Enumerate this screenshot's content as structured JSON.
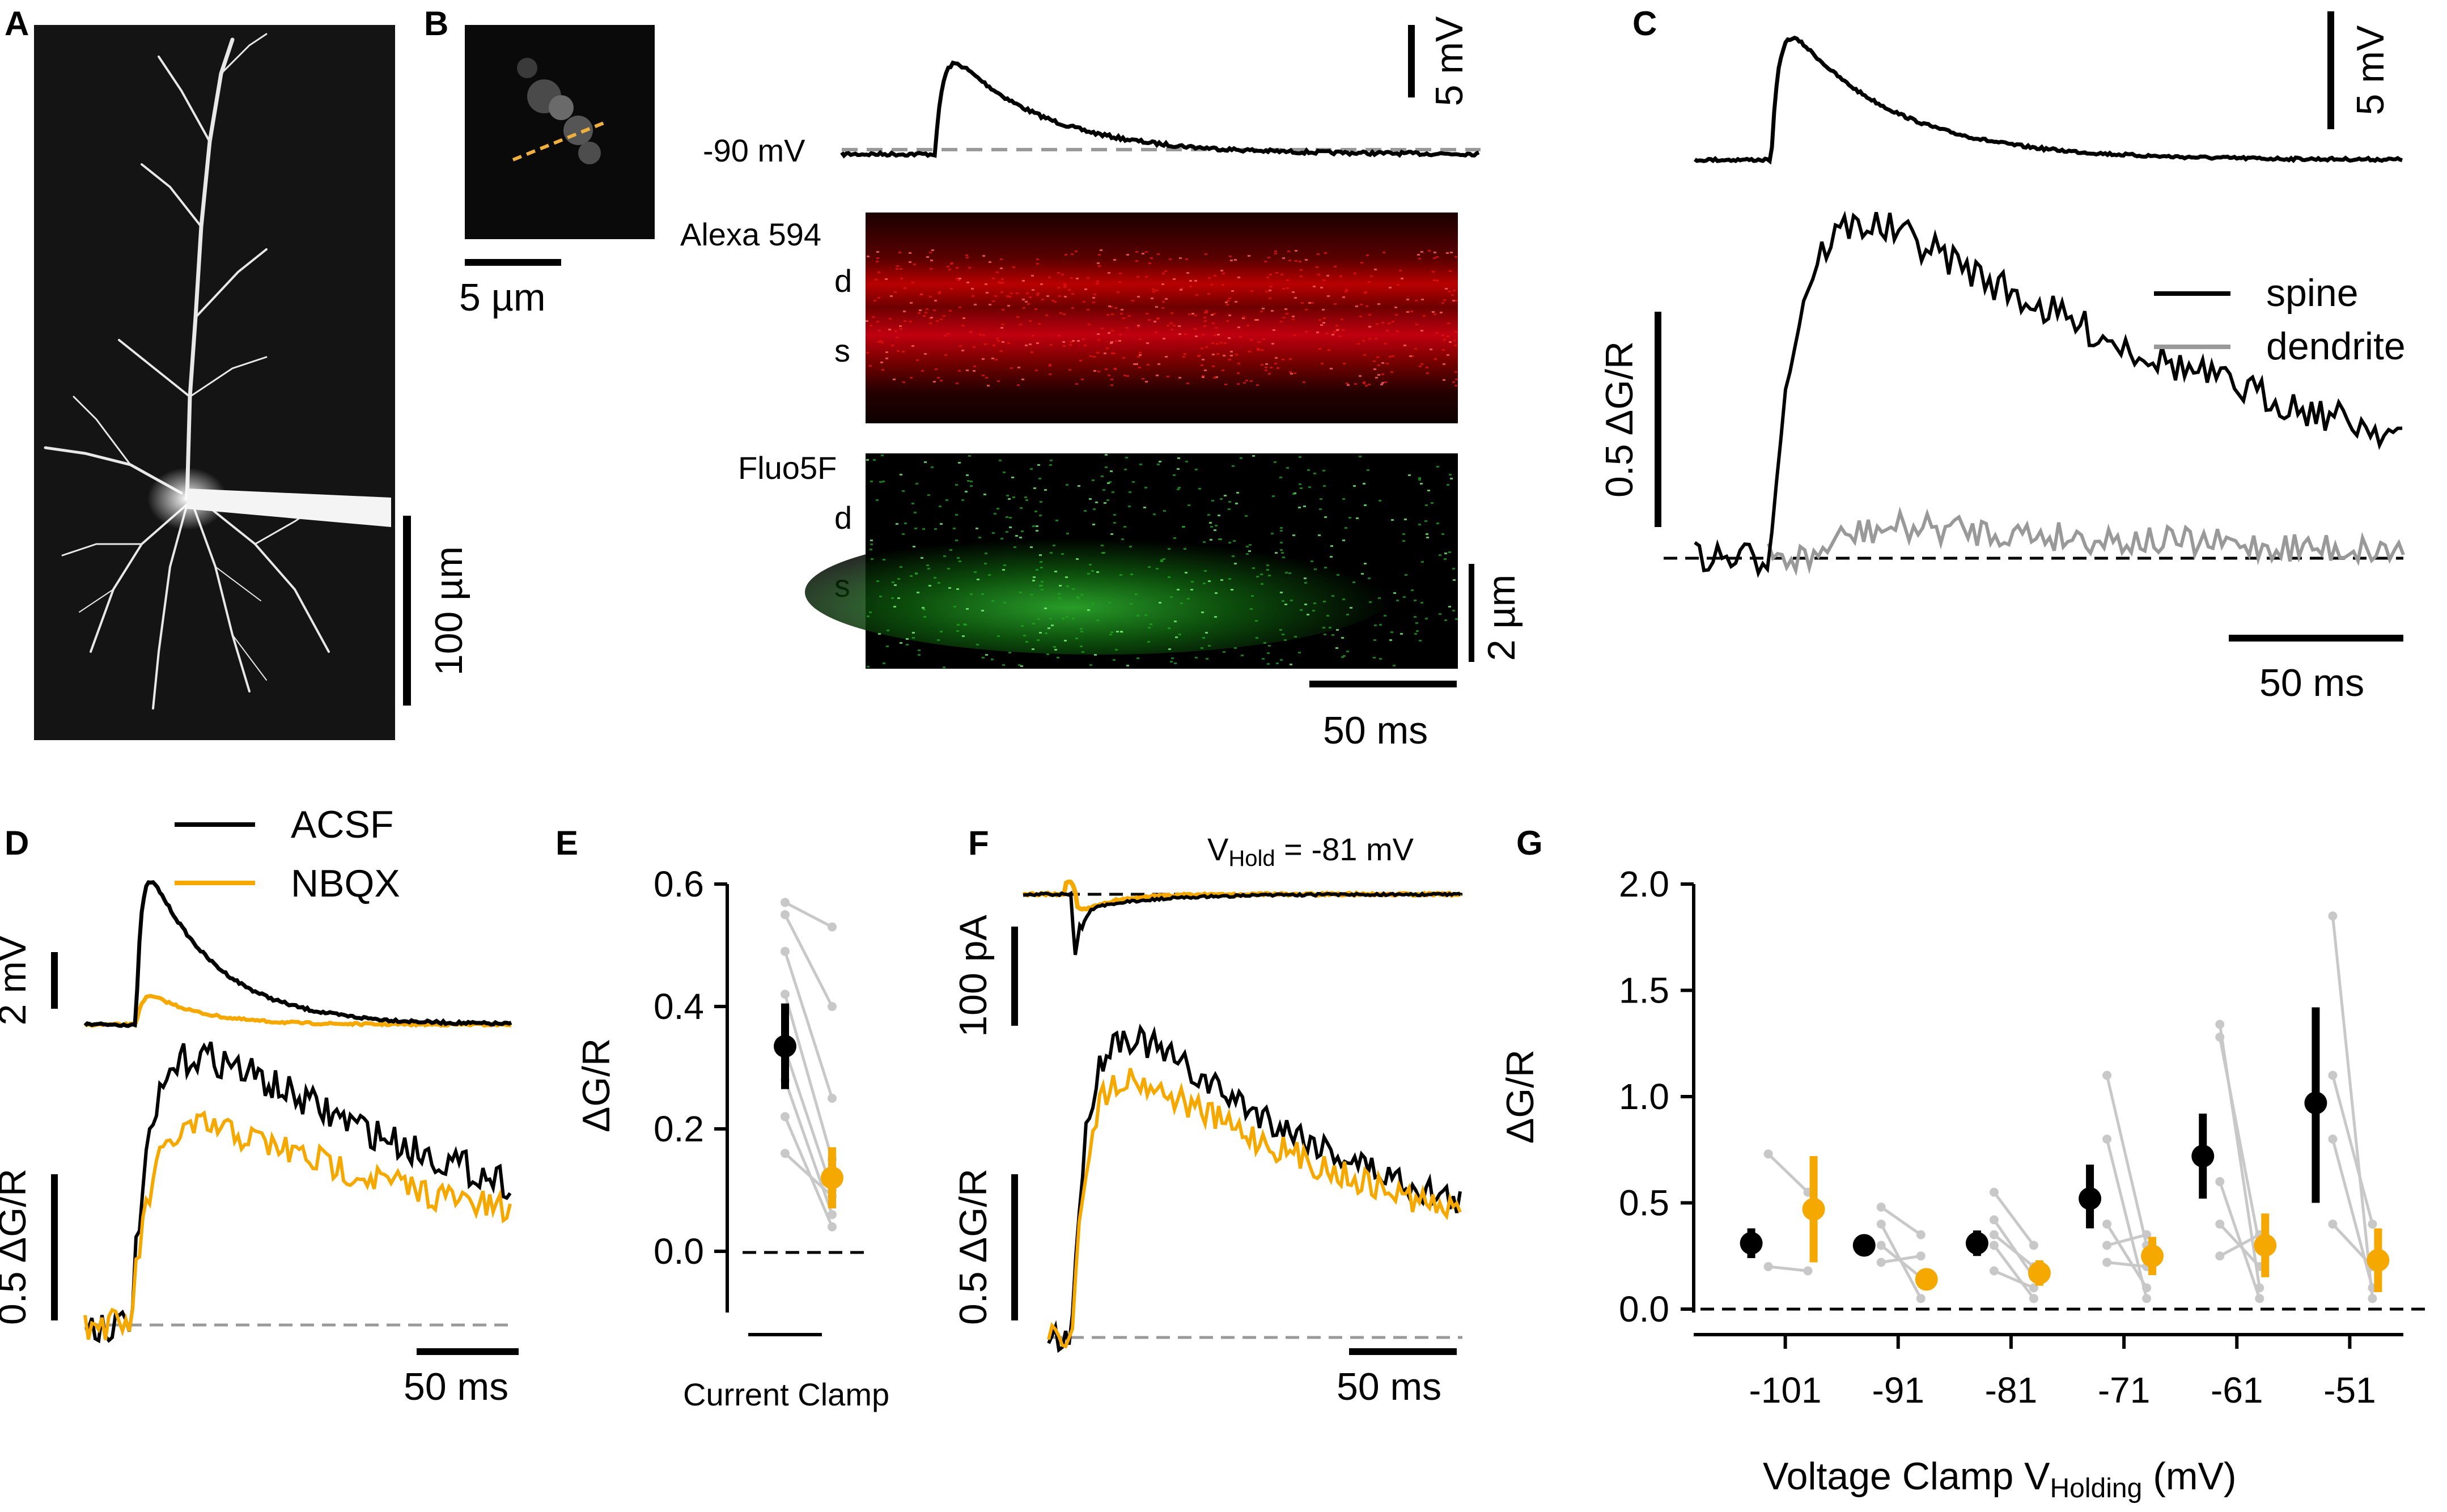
{
  "panels": {
    "A": {
      "label": "A",
      "scalebar": "100 µm"
    },
    "B": {
      "label": "B",
      "image_scalebar": "5 µm",
      "baseline": "-90 mV",
      "vbar": "5 mV",
      "red_channel": "Alexa 594",
      "green_channel": "Fluo5F",
      "row_d": "d",
      "row_s": "s",
      "space_bar": "2 µm",
      "time_bar": "50 ms"
    },
    "C": {
      "label": "C",
      "vbar": "5 mV",
      "dgr_bar": "0.5 ΔG/R",
      "time_bar": "50 ms",
      "legend_spine": "spine",
      "legend_dendrite": "dendrite"
    },
    "D": {
      "label": "D",
      "legend_acsf": "ACSF",
      "legend_nbqx": "NBQX",
      "vbar": "2 mV",
      "dgr_bar": "0.5 ΔG/R",
      "time_bar": "50 ms"
    },
    "E": {
      "label": "E"
    },
    "F": {
      "label": "F",
      "vhold_prefix": "V",
      "vhold_sub": "Hold",
      "vhold_suffix": " = -81 mV",
      "ibar": "100 pA",
      "dgr_bar": "0.5 ΔG/R",
      "time_bar": "50 ms"
    },
    "G": {
      "label": "G"
    }
  },
  "colors": {
    "acsf": "#000000",
    "nbqx": "#F5A800",
    "individual": "#C8C8C8",
    "dendrite": "#999999",
    "dashed": "#999999"
  },
  "chart_data": [
    {
      "panel": "E",
      "type": "scatter",
      "ylabel": "ΔG/R",
      "xlabel": "Current Clamp",
      "ylim": [
        -0.1,
        0.6
      ],
      "yticks": [
        0.0,
        0.2,
        0.4,
        0.6
      ],
      "ytick_labels": [
        "0.0",
        "0.2",
        "0.4",
        "0.6"
      ],
      "series": [
        {
          "name": "ACSF",
          "mean": 0.335,
          "err_low": 0.265,
          "err_high": 0.405
        },
        {
          "name": "NBQX",
          "mean": 0.12,
          "err_low": 0.07,
          "err_high": 0.17
        }
      ],
      "individual_pairs": [
        [
          0.57,
          0.53
        ],
        [
          0.55,
          0.4
        ],
        [
          0.49,
          0.25
        ],
        [
          0.42,
          0.15
        ],
        [
          0.33,
          0.1
        ],
        [
          0.28,
          0.06
        ],
        [
          0.22,
          0.04
        ],
        [
          0.16,
          0.09
        ]
      ]
    },
    {
      "panel": "G",
      "type": "scatter",
      "ylabel": "ΔG/R",
      "xlabel_prefix": "Voltage Clamp V",
      "xlabel_sub": "Holding",
      "xlabel_suffix": " (mV)",
      "categories": [
        "-101",
        "-91",
        "-81",
        "-71",
        "-61",
        "-51"
      ],
      "ylim": [
        0.0,
        2.0
      ],
      "yticks": [
        0.0,
        0.5,
        1.0,
        1.5,
        2.0
      ],
      "ytick_labels": [
        "0.0",
        "0.5",
        "1.0",
        "1.5",
        "2.0"
      ],
      "series": [
        {
          "name": "ACSF",
          "means": [
            0.31,
            0.3,
            0.31,
            0.52,
            0.72,
            0.97
          ],
          "err_low": [
            0.24,
            0.27,
            0.25,
            0.38,
            0.52,
            0.5
          ],
          "err_high": [
            0.38,
            0.33,
            0.37,
            0.68,
            0.92,
            1.42
          ]
        },
        {
          "name": "NBQX",
          "means": [
            0.47,
            0.14,
            0.17,
            0.25,
            0.3,
            0.23
          ],
          "err_low": [
            0.22,
            0.1,
            0.11,
            0.16,
            0.15,
            0.08
          ],
          "err_high": [
            0.72,
            0.18,
            0.23,
            0.34,
            0.45,
            0.38
          ]
        }
      ],
      "individual_pairs": [
        [
          [
            0.73,
            0.55
          ],
          [
            0.2,
            0.18
          ]
        ],
        [
          [
            0.48,
            0.35
          ],
          [
            0.4,
            0.05
          ],
          [
            0.22,
            0.25
          ],
          [
            0.3,
            0.15
          ]
        ],
        [
          [
            0.55,
            0.3
          ],
          [
            0.42,
            0.15
          ],
          [
            0.3,
            0.05
          ],
          [
            0.18,
            0.1
          ],
          [
            0.35,
            0.2
          ]
        ],
        [
          [
            1.1,
            0.3
          ],
          [
            0.8,
            0.05
          ],
          [
            0.4,
            0.1
          ],
          [
            0.22,
            0.2
          ],
          [
            0.3,
            0.35
          ]
        ],
        [
          [
            1.34,
            0.1
          ],
          [
            1.28,
            0.3
          ],
          [
            0.6,
            0.05
          ],
          [
            0.4,
            0.2
          ],
          [
            0.25,
            0.35
          ]
        ],
        [
          [
            1.85,
            0.05
          ],
          [
            1.1,
            0.4
          ],
          [
            0.8,
            0.1
          ],
          [
            0.4,
            0.2
          ]
        ]
      ]
    }
  ]
}
